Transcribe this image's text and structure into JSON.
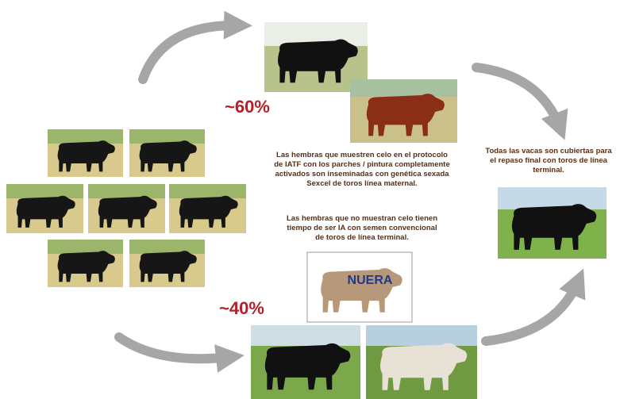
{
  "labels": {
    "high": "~60%",
    "low": "~40%"
  },
  "center_text": {
    "first": [
      "Las hembras que muestren celo en el protocolo",
      "de IATF con los parches / pintura completamente",
      "activados son inseminadas con genética sexada",
      "Sexcel de toros línea maternal."
    ],
    "second": [
      "Las hembras que no muestran celo tienen",
      "tiempo de ser IA con semen convencional",
      "de toros de línea terminal."
    ]
  },
  "right_text": [
    "Todas las vacas son cubiertas para",
    "el repaso final con toros de línea",
    "terminal."
  ],
  "logo": {
    "name": "NUERA"
  }
}
